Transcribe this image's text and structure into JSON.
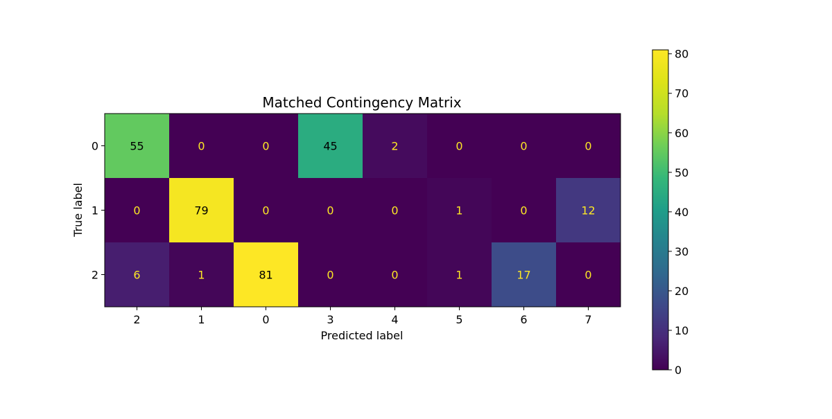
{
  "chart_data": {
    "type": "heatmap",
    "title": "Matched Contingency Matrix",
    "xlabel": "Predicted label",
    "ylabel": "True label",
    "x_categories": [
      "2",
      "1",
      "0",
      "3",
      "4",
      "5",
      "6",
      "7"
    ],
    "y_categories": [
      "0",
      "1",
      "2"
    ],
    "values": [
      [
        55,
        0,
        0,
        45,
        2,
        0,
        0,
        0
      ],
      [
        0,
        79,
        0,
        0,
        0,
        1,
        0,
        12
      ],
      [
        6,
        1,
        81,
        0,
        0,
        1,
        17,
        0
      ]
    ],
    "colormap": "viridis",
    "colorbar": {
      "range": [
        0,
        81
      ],
      "ticks": [
        0,
        10,
        20,
        30,
        40,
        50,
        60,
        70,
        80
      ]
    },
    "annotation_colors": {
      "light": "#fde725",
      "dark": "#000000"
    }
  }
}
